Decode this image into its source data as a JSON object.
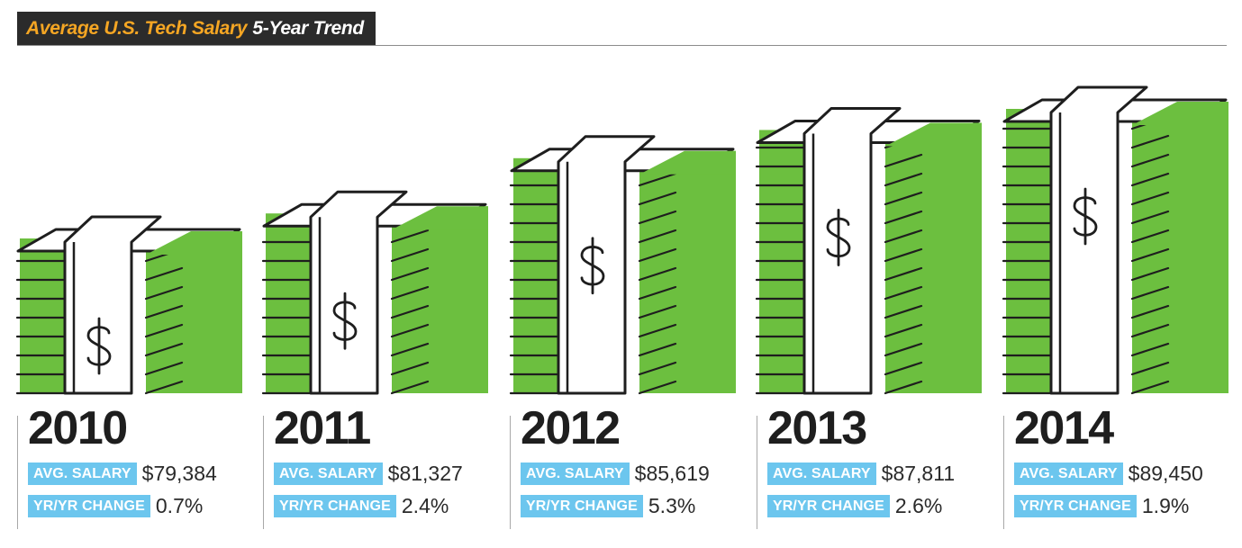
{
  "title": {
    "main": "Average U.S. Tech Salary",
    "sub": "5-Year Trend"
  },
  "labels": {
    "salary": "AVG. SALARY",
    "change": "YR/YR CHANGE"
  },
  "colors": {
    "green": "#6cbf3f",
    "badge": "#6cc6ee",
    "title_bg": "#2b2b2b",
    "title_accent": "#f5a623"
  },
  "chart_data": {
    "type": "bar",
    "title": "Average U.S. Tech Salary 5-Year Trend",
    "categories": [
      "2010",
      "2011",
      "2012",
      "2013",
      "2014"
    ],
    "values": [
      79384,
      81327,
      85619,
      87811,
      89450
    ],
    "yoy_change_percent": [
      0.7,
      2.4,
      5.3,
      2.6,
      1.9
    ]
  },
  "years": [
    {
      "year": "2010",
      "salary": "$79,384",
      "change": "0.7%"
    },
    {
      "year": "2011",
      "salary": "$81,327",
      "change": "2.4%"
    },
    {
      "year": "2012",
      "salary": "$85,619",
      "change": "5.3%"
    },
    {
      "year": "2013",
      "salary": "$87,811",
      "change": "2.6%"
    },
    {
      "year": "2014",
      "salary": "$89,450",
      "change": "1.9%"
    }
  ]
}
